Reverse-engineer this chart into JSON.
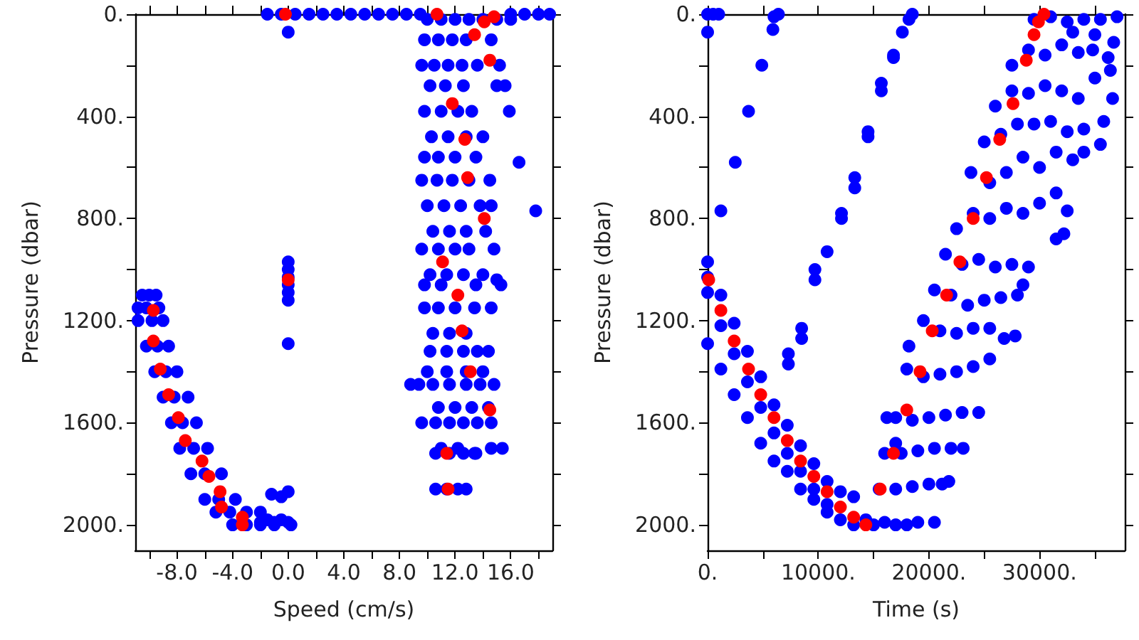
{
  "chart_data": [
    {
      "type": "scatter",
      "xlabel": "Speed (cm/s)",
      "ylabel": "Pressure (dbar)",
      "marker": "circle",
      "xlim": [
        -11,
        19
      ],
      "ylim": [
        2100,
        0
      ],
      "xticks": [
        {
          "value": -10,
          "label": null
        },
        {
          "value": -8,
          "label": "-8.0"
        },
        {
          "value": -6,
          "label": null
        },
        {
          "value": -4,
          "label": "-4.0"
        },
        {
          "value": -2,
          "label": null
        },
        {
          "value": 0,
          "label": "0.0"
        },
        {
          "value": 2,
          "label": null
        },
        {
          "value": 4,
          "label": "4.0"
        },
        {
          "value": 6,
          "label": null
        },
        {
          "value": 8,
          "label": "8.0"
        },
        {
          "value": 10,
          "label": null
        },
        {
          "value": 12,
          "label": "12.0"
        },
        {
          "value": 14,
          "label": null
        },
        {
          "value": 16,
          "label": "16.0"
        },
        {
          "value": 18,
          "label": null
        }
      ],
      "yticks": [
        {
          "value": 0,
          "label": "0."
        },
        {
          "value": 200,
          "label": null
        },
        {
          "value": 400,
          "label": "400."
        },
        {
          "value": 600,
          "label": null
        },
        {
          "value": 800,
          "label": "800."
        },
        {
          "value": 1000,
          "label": null
        },
        {
          "value": 1200,
          "label": "1200."
        },
        {
          "value": 1400,
          "label": null
        },
        {
          "value": 1600,
          "label": "1600."
        },
        {
          "value": 1800,
          "label": null
        },
        {
          "value": 2000,
          "label": "2000."
        }
      ],
      "series": [
        {
          "color": "#0000ff",
          "x": [
            -1.5,
            -0.5,
            0.5,
            1.5,
            2.5,
            3.5,
            4.5,
            5.5,
            6.5,
            7.5,
            8.5,
            9.5,
            16,
            17,
            18,
            18.8,
            0,
            0,
            0,
            0,
            0,
            0,
            0,
            0,
            -1.2,
            -0.5,
            0,
            0,
            -1,
            -2,
            -10.5,
            -10,
            -9.5,
            -10.8,
            -10.2,
            -9.3,
            -10.8,
            -9.8,
            -9,
            -10.2,
            -9.4,
            -8.6,
            -9.6,
            -8.8,
            -8,
            -9,
            -8.2,
            -7.2,
            -8.4,
            -7.6,
            -6.6,
            -7.8,
            -6.8,
            -5.8,
            -7,
            -6,
            -4.8,
            -6,
            -5,
            -3.8,
            -5.2,
            -4.2,
            -3,
            -2,
            -4,
            -3,
            -2,
            -1,
            0.2,
            -1.5,
            -0.5,
            10,
            11,
            12,
            13,
            14,
            15,
            16,
            9.8,
            10.8,
            11.8,
            12.8,
            14.6,
            9.6,
            10.5,
            11.5,
            12.5,
            13.6,
            15.2,
            10.2,
            11.3,
            12.6,
            15,
            15.6,
            9.8,
            11,
            12.2,
            13.2,
            10.3,
            11.5,
            12.8,
            14,
            9.8,
            10.8,
            12,
            13.5,
            9.6,
            10.7,
            11.8,
            13,
            14.5,
            10,
            11.2,
            12.4,
            13.8,
            14.6,
            10.4,
            11.6,
            12.8,
            14.2,
            9.6,
            10.8,
            12,
            13,
            14.8,
            10.2,
            11.4,
            12.6,
            14,
            9.8,
            11,
            13.5,
            15.3,
            9.8,
            10.8,
            12,
            13.4,
            14.6,
            10.4,
            11.6,
            12.8,
            10.2,
            11.4,
            12.6,
            13.6,
            14.4,
            10,
            11.4,
            12.8,
            14,
            8.8,
            9.4,
            10.4,
            11.6,
            12.8,
            13.8,
            14.8,
            10.8,
            12,
            13.2,
            14.4,
            9.6,
            10.6,
            11.6,
            12.6,
            13.6,
            14.6,
            11,
            12.2,
            14.6,
            15.4,
            10.6,
            11.6,
            12.6,
            13.4,
            10.6,
            11.4,
            12.2,
            12.8,
            15.9,
            16.6,
            17.8,
            15,
            13.5
          ],
          "values": [
            0,
            0,
            0,
            0,
            0,
            0,
            0,
            0,
            0,
            0,
            0,
            0,
            0,
            0,
            0,
            0,
            970,
            1000,
            1030,
            1060,
            1090,
            1120,
            1290,
            70,
            1880,
            1890,
            1870,
            1990,
            1990,
            1990,
            1100,
            1100,
            1100,
            1150,
            1150,
            1150,
            1200,
            1200,
            1200,
            1300,
            1300,
            1300,
            1400,
            1400,
            1400,
            1500,
            1500,
            1500,
            1600,
            1600,
            1600,
            1700,
            1700,
            1700,
            1800,
            1800,
            1800,
            1900,
            1900,
            1900,
            1950,
            1950,
            1950,
            1950,
            2000,
            2000,
            2000,
            2000,
            2000,
            1980,
            1980,
            20,
            20,
            20,
            20,
            20,
            20,
            20,
            100,
            100,
            100,
            100,
            100,
            200,
            200,
            200,
            200,
            200,
            200,
            280,
            280,
            280,
            280,
            280,
            380,
            380,
            380,
            380,
            480,
            480,
            480,
            480,
            560,
            560,
            560,
            560,
            650,
            650,
            650,
            650,
            650,
            750,
            750,
            750,
            750,
            750,
            850,
            850,
            850,
            850,
            920,
            920,
            920,
            920,
            920,
            1020,
            1020,
            1020,
            1020,
            1060,
            1060,
            1060,
            1060,
            1150,
            1150,
            1150,
            1150,
            1150,
            1250,
            1250,
            1250,
            1320,
            1320,
            1320,
            1320,
            1320,
            1400,
            1400,
            1400,
            1400,
            1450,
            1450,
            1450,
            1450,
            1450,
            1450,
            1450,
            1540,
            1540,
            1540,
            1540,
            1600,
            1600,
            1600,
            1600,
            1600,
            1600,
            1700,
            1700,
            1700,
            1700,
            1720,
            1720,
            1720,
            1720,
            1860,
            1860,
            1860,
            1860,
            380,
            580,
            770,
            1040,
            1720
          ]
        },
        {
          "color": "#ff0000",
          "x": [
            -0.2,
            10.7,
            14.1,
            14.8,
            13.4,
            14.5,
            11.8,
            12.7,
            12.9,
            14.1,
            11.1,
            12.2,
            12.5,
            13.1,
            14.5,
            11.4,
            11.5,
            0,
            -9.7,
            -9.7,
            -9.2,
            -8.6,
            -7.9,
            -7.4,
            -6.2,
            -5.7,
            -4.9,
            -4.8,
            -3.3,
            -3.3
          ],
          "values": [
            0,
            0,
            30,
            10,
            80,
            180,
            350,
            490,
            640,
            800,
            970,
            1100,
            1240,
            1400,
            1550,
            1720,
            1860,
            1040,
            1160,
            1280,
            1390,
            1490,
            1580,
            1670,
            1750,
            1810,
            1870,
            1930,
            1970,
            2000
          ]
        }
      ]
    },
    {
      "type": "scatter",
      "xlabel": "Time (s)",
      "ylabel": "Pressure (dbar)",
      "marker": "circle",
      "xlim": [
        0,
        37700
      ],
      "ylim": [
        2100,
        0
      ],
      "xticks": [
        {
          "value": 0,
          "label": "0."
        },
        {
          "value": 5000,
          "label": null
        },
        {
          "value": 10000,
          "label": "10000."
        },
        {
          "value": 15000,
          "label": null
        },
        {
          "value": 20000,
          "label": "20000."
        },
        {
          "value": 25000,
          "label": null
        },
        {
          "value": 30000,
          "label": "30000."
        },
        {
          "value": 35000,
          "label": null
        }
      ],
      "yticks": [
        {
          "value": 0,
          "label": "0."
        },
        {
          "value": 200,
          "label": null
        },
        {
          "value": 400,
          "label": "400."
        },
        {
          "value": 600,
          "label": null
        },
        {
          "value": 800,
          "label": "800."
        },
        {
          "value": 1000,
          "label": null
        },
        {
          "value": 1200,
          "label": "1200."
        },
        {
          "value": 1400,
          "label": null
        },
        {
          "value": 1600,
          "label": "1600."
        },
        {
          "value": 1800,
          "label": null
        },
        {
          "value": 2000,
          "label": "2000."
        }
      ],
      "series": [
        {
          "color": "#0000ff",
          "x": [
            0,
            500,
            1000,
            6000,
            6400,
            17600,
            18200,
            18500,
            0,
            0,
            0,
            0,
            0,
            1200,
            2500,
            3700,
            4900,
            5900,
            1200,
            2400,
            3600,
            4800,
            6000,
            7200,
            8400,
            9600,
            10800,
            7300,
            7300,
            8500,
            8500,
            9700,
            9700,
            10800,
            12100,
            12100,
            13300,
            13300,
            14500,
            14500,
            15700,
            15700,
            16800,
            16800,
            1200,
            1200,
            2400,
            2400,
            3600,
            3600,
            4800,
            4800,
            6000,
            6000,
            7200,
            7200,
            8400,
            8400,
            9600,
            9600,
            10800,
            10800,
            12000,
            12000,
            13200,
            13200,
            14300,
            15000,
            16000,
            17000,
            18000,
            19000,
            20500,
            15500,
            17000,
            18500,
            20000,
            21200,
            21800,
            16000,
            17500,
            19000,
            20500,
            22000,
            23100,
            17000,
            17000,
            18500,
            20000,
            21500,
            23000,
            24500,
            16200,
            18000,
            19500,
            21000,
            22500,
            24000,
            25500,
            18200,
            19500,
            21000,
            22500,
            24000,
            25500,
            26800,
            27800,
            20500,
            22000,
            23500,
            25000,
            26500,
            28000,
            28500,
            21500,
            23000,
            24500,
            26000,
            27500,
            29000,
            31500,
            32200,
            22500,
            24000,
            25500,
            27000,
            28500,
            30000,
            31500,
            32500,
            23800,
            25500,
            27000,
            28500,
            30000,
            31500,
            33000,
            34000,
            35500,
            25000,
            26500,
            28000,
            29500,
            31000,
            32500,
            34000,
            35800,
            36600,
            26000,
            27500,
            29000,
            30500,
            32000,
            33500,
            35000,
            36400,
            27500,
            29000,
            30500,
            32000,
            33500,
            34800,
            36200,
            36700,
            29500,
            31000,
            32500,
            34000,
            35500,
            37000,
            33000,
            35000
          ],
          "values": [
            0,
            0,
            0,
            10,
            0,
            70,
            20,
            0,
            70,
            970,
            1030,
            1090,
            1290,
            770,
            580,
            380,
            200,
            60,
            1390,
            1490,
            1580,
            1680,
            1750,
            1790,
            1860,
            1900,
            1950,
            1330,
            1370,
            1230,
            1270,
            1040,
            1000,
            930,
            800,
            780,
            680,
            640,
            480,
            460,
            300,
            270,
            170,
            160,
            1100,
            1220,
            1210,
            1330,
            1320,
            1440,
            1420,
            1540,
            1530,
            1640,
            1610,
            1720,
            1690,
            1790,
            1760,
            1860,
            1830,
            1920,
            1870,
            1980,
            1890,
            2000,
            1980,
            2000,
            1990,
            2000,
            2000,
            1990,
            1990,
            1860,
            1860,
            1850,
            1840,
            1840,
            1830,
            1720,
            1720,
            1710,
            1700,
            1700,
            1700,
            1680,
            1580,
            1590,
            1580,
            1570,
            1560,
            1560,
            1580,
            1390,
            1420,
            1410,
            1400,
            1380,
            1350,
            1300,
            1200,
            1240,
            1250,
            1230,
            1230,
            1270,
            1260,
            1080,
            1100,
            1140,
            1120,
            1110,
            1100,
            1060,
            940,
            980,
            960,
            990,
            980,
            990,
            880,
            860,
            840,
            780,
            800,
            760,
            780,
            740,
            700,
            770,
            620,
            660,
            620,
            560,
            600,
            540,
            570,
            540,
            510,
            500,
            470,
            430,
            430,
            420,
            460,
            450,
            420,
            330,
            360,
            300,
            310,
            280,
            300,
            330,
            250,
            220,
            200,
            140,
            160,
            120,
            150,
            140,
            170,
            110,
            20,
            10,
            30,
            20,
            20,
            10,
            70,
            80
          ]
        },
        {
          "color": "#ff0000",
          "x": [
            100,
            1200,
            2400,
            3700,
            4800,
            6000,
            7200,
            8400,
            9600,
            10800,
            12000,
            13200,
            14300,
            15600,
            16800,
            18000,
            19200,
            20300,
            21600,
            22800,
            24000,
            25200,
            26400,
            27600,
            28800,
            29500,
            29900,
            30400
          ],
          "values": [
            1040,
            1160,
            1280,
            1390,
            1490,
            1580,
            1670,
            1750,
            1810,
            1870,
            1930,
            1970,
            2000,
            1860,
            1720,
            1550,
            1400,
            1240,
            1100,
            970,
            800,
            640,
            490,
            350,
            180,
            80,
            30,
            0
          ]
        }
      ]
    }
  ]
}
